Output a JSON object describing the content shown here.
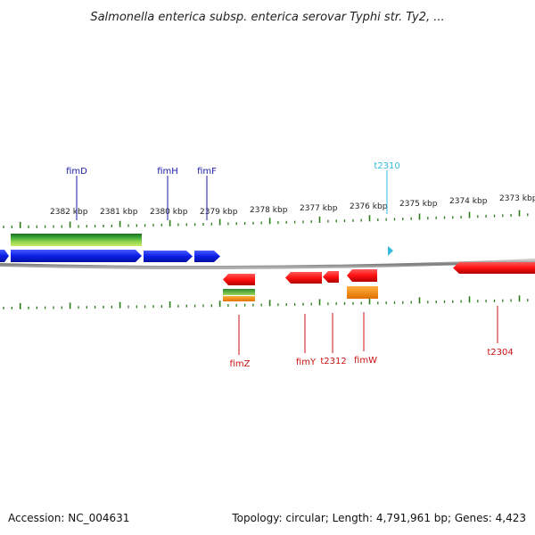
{
  "header": {
    "title": "Salmonella enterica subsp. enterica serovar Typhi str. Ty2, ..."
  },
  "footer": {
    "accession": "Accession: NC_004631",
    "summary": "Topology: circular; Length: 4,791,961 bp; Genes: 4,423"
  },
  "scale": {
    "unit": "kbp",
    "ticks": [
      "2382 kbp",
      "2381 kbp",
      "2380 kbp",
      "2379 kbp",
      "2378 kbp",
      "2377 kbp",
      "2376 kbp",
      "2375 kbp",
      "2374 kbp",
      "2373 kbp"
    ]
  },
  "genes": {
    "top": [
      {
        "label": "fimD",
        "color": "#1a1aa6"
      },
      {
        "label": "fimH",
        "color": "#1a1aa6"
      },
      {
        "label": "fimF",
        "color": "#1a1aa6"
      },
      {
        "label": "t2310",
        "color": "#33bbdd"
      }
    ],
    "bottom": [
      {
        "label": "fimZ",
        "color": "#cc1111"
      },
      {
        "label": "fimY",
        "color": "#cc1111"
      },
      {
        "label": "t2312",
        "color": "#cc1111"
      },
      {
        "label": "fimW",
        "color": "#cc1111"
      },
      {
        "label": "t2304",
        "color": "#cc1111"
      }
    ]
  },
  "colors": {
    "forward_strand": "#0a1ee6",
    "reverse_strand": "#ff1111",
    "backbone": "#8a8a8a",
    "tick": "#2a7a1a",
    "annotation_green": "#3aa63a",
    "annotation_orange": "#ff8c00"
  }
}
